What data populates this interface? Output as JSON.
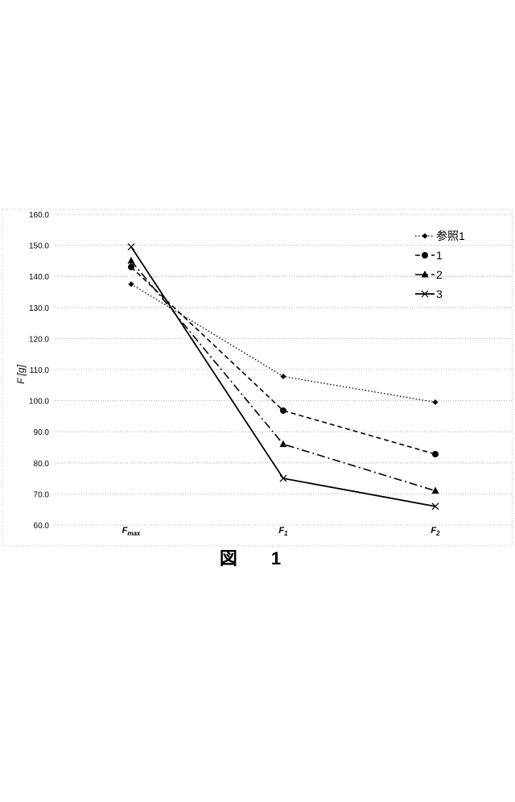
{
  "figure": {
    "caption": "図 1"
  },
  "chart_data": {
    "type": "line",
    "title": "",
    "xlabel": "",
    "ylabel": "F [g]",
    "categories": [
      "F_max",
      "F_1",
      "F_2"
    ],
    "category_labels": [
      {
        "main": "F",
        "sub": "max"
      },
      {
        "main": "F",
        "sub": "1"
      },
      {
        "main": "F",
        "sub": "2"
      }
    ],
    "ylim": [
      60,
      160
    ],
    "yticks": [
      "60.0",
      "70.0",
      "80.0",
      "90.0",
      "100.0",
      "110.0",
      "120.0",
      "130.0",
      "140.0",
      "150.0",
      "160.0"
    ],
    "grid": true,
    "legend_position": "top-right",
    "series": [
      {
        "name": "参照1",
        "values": [
          137.5,
          107.8,
          99.5
        ],
        "marker": "diamond",
        "dash": "dotted"
      },
      {
        "name": "1",
        "values": [
          143.0,
          96.8,
          82.8
        ],
        "marker": "circle",
        "dash": "dashed"
      },
      {
        "name": "2",
        "values": [
          145.0,
          86.0,
          71.0
        ],
        "marker": "triangle",
        "dash": "dashdot"
      },
      {
        "name": "3",
        "values": [
          149.5,
          75.0,
          66.0
        ],
        "marker": "x",
        "dash": "solid"
      }
    ]
  }
}
